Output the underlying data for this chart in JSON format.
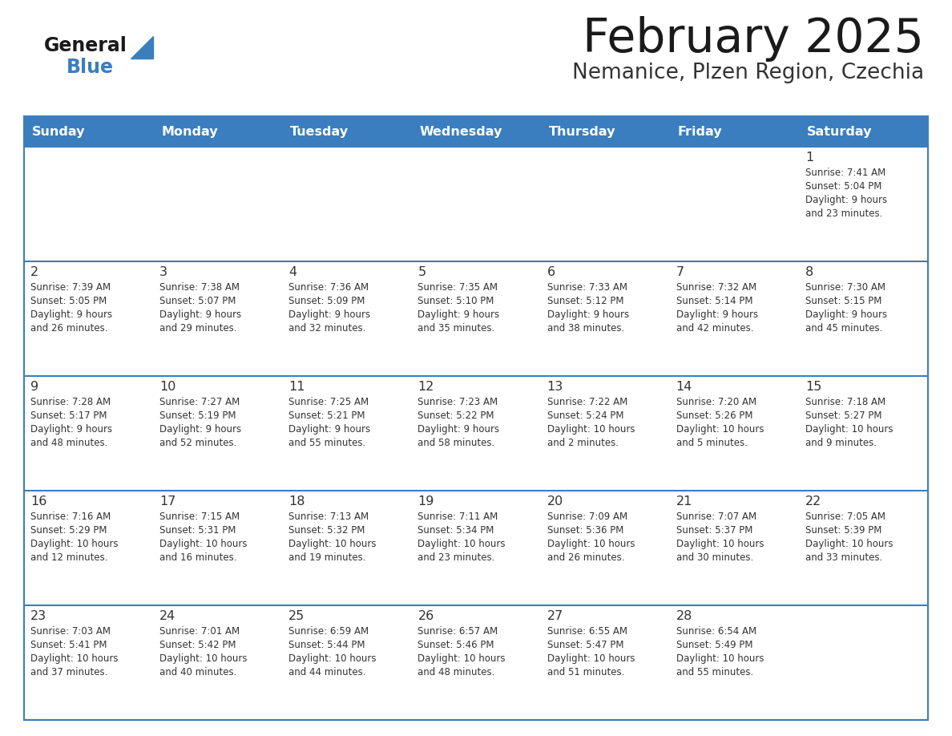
{
  "title": "February 2025",
  "subtitle": "Nemanice, Plzen Region, Czechia",
  "header_bg": "#3a7ebf",
  "header_text": "#ffffff",
  "cell_bg_white": "#ffffff",
  "cell_bg_gray": "#f0f4f8",
  "border_color": "#3a7ebf",
  "day_headers": [
    "Sunday",
    "Monday",
    "Tuesday",
    "Wednesday",
    "Thursday",
    "Friday",
    "Saturday"
  ],
  "title_color": "#1a1a1a",
  "subtitle_color": "#333333",
  "cell_text_color": "#333333",
  "logo_general_color": "#1a1a1a",
  "logo_blue_color": "#3a7ebf",
  "logo_triangle_color": "#3a7ebf",
  "days": [
    {
      "day": 1,
      "col": 6,
      "row": 0,
      "sunrise": "7:41 AM",
      "sunset": "5:04 PM",
      "daylight": "9 hours and 23 minutes"
    },
    {
      "day": 2,
      "col": 0,
      "row": 1,
      "sunrise": "7:39 AM",
      "sunset": "5:05 PM",
      "daylight": "9 hours and 26 minutes"
    },
    {
      "day": 3,
      "col": 1,
      "row": 1,
      "sunrise": "7:38 AM",
      "sunset": "5:07 PM",
      "daylight": "9 hours and 29 minutes"
    },
    {
      "day": 4,
      "col": 2,
      "row": 1,
      "sunrise": "7:36 AM",
      "sunset": "5:09 PM",
      "daylight": "9 hours and 32 minutes"
    },
    {
      "day": 5,
      "col": 3,
      "row": 1,
      "sunrise": "7:35 AM",
      "sunset": "5:10 PM",
      "daylight": "9 hours and 35 minutes"
    },
    {
      "day": 6,
      "col": 4,
      "row": 1,
      "sunrise": "7:33 AM",
      "sunset": "5:12 PM",
      "daylight": "9 hours and 38 minutes"
    },
    {
      "day": 7,
      "col": 5,
      "row": 1,
      "sunrise": "7:32 AM",
      "sunset": "5:14 PM",
      "daylight": "9 hours and 42 minutes"
    },
    {
      "day": 8,
      "col": 6,
      "row": 1,
      "sunrise": "7:30 AM",
      "sunset": "5:15 PM",
      "daylight": "9 hours and 45 minutes"
    },
    {
      "day": 9,
      "col": 0,
      "row": 2,
      "sunrise": "7:28 AM",
      "sunset": "5:17 PM",
      "daylight": "9 hours and 48 minutes"
    },
    {
      "day": 10,
      "col": 1,
      "row": 2,
      "sunrise": "7:27 AM",
      "sunset": "5:19 PM",
      "daylight": "9 hours and 52 minutes"
    },
    {
      "day": 11,
      "col": 2,
      "row": 2,
      "sunrise": "7:25 AM",
      "sunset": "5:21 PM",
      "daylight": "9 hours and 55 minutes"
    },
    {
      "day": 12,
      "col": 3,
      "row": 2,
      "sunrise": "7:23 AM",
      "sunset": "5:22 PM",
      "daylight": "9 hours and 58 minutes"
    },
    {
      "day": 13,
      "col": 4,
      "row": 2,
      "sunrise": "7:22 AM",
      "sunset": "5:24 PM",
      "daylight": "10 hours and 2 minutes"
    },
    {
      "day": 14,
      "col": 5,
      "row": 2,
      "sunrise": "7:20 AM",
      "sunset": "5:26 PM",
      "daylight": "10 hours and 5 minutes"
    },
    {
      "day": 15,
      "col": 6,
      "row": 2,
      "sunrise": "7:18 AM",
      "sunset": "5:27 PM",
      "daylight": "10 hours and 9 minutes"
    },
    {
      "day": 16,
      "col": 0,
      "row": 3,
      "sunrise": "7:16 AM",
      "sunset": "5:29 PM",
      "daylight": "10 hours and 12 minutes"
    },
    {
      "day": 17,
      "col": 1,
      "row": 3,
      "sunrise": "7:15 AM",
      "sunset": "5:31 PM",
      "daylight": "10 hours and 16 minutes"
    },
    {
      "day": 18,
      "col": 2,
      "row": 3,
      "sunrise": "7:13 AM",
      "sunset": "5:32 PM",
      "daylight": "10 hours and 19 minutes"
    },
    {
      "day": 19,
      "col": 3,
      "row": 3,
      "sunrise": "7:11 AM",
      "sunset": "5:34 PM",
      "daylight": "10 hours and 23 minutes"
    },
    {
      "day": 20,
      "col": 4,
      "row": 3,
      "sunrise": "7:09 AM",
      "sunset": "5:36 PM",
      "daylight": "10 hours and 26 minutes"
    },
    {
      "day": 21,
      "col": 5,
      "row": 3,
      "sunrise": "7:07 AM",
      "sunset": "5:37 PM",
      "daylight": "10 hours and 30 minutes"
    },
    {
      "day": 22,
      "col": 6,
      "row": 3,
      "sunrise": "7:05 AM",
      "sunset": "5:39 PM",
      "daylight": "10 hours and 33 minutes"
    },
    {
      "day": 23,
      "col": 0,
      "row": 4,
      "sunrise": "7:03 AM",
      "sunset": "5:41 PM",
      "daylight": "10 hours and 37 minutes"
    },
    {
      "day": 24,
      "col": 1,
      "row": 4,
      "sunrise": "7:01 AM",
      "sunset": "5:42 PM",
      "daylight": "10 hours and 40 minutes"
    },
    {
      "day": 25,
      "col": 2,
      "row": 4,
      "sunrise": "6:59 AM",
      "sunset": "5:44 PM",
      "daylight": "10 hours and 44 minutes"
    },
    {
      "day": 26,
      "col": 3,
      "row": 4,
      "sunrise": "6:57 AM",
      "sunset": "5:46 PM",
      "daylight": "10 hours and 48 minutes"
    },
    {
      "day": 27,
      "col": 4,
      "row": 4,
      "sunrise": "6:55 AM",
      "sunset": "5:47 PM",
      "daylight": "10 hours and 51 minutes"
    },
    {
      "day": 28,
      "col": 5,
      "row": 4,
      "sunrise": "6:54 AM",
      "sunset": "5:49 PM",
      "daylight": "10 hours and 55 minutes"
    }
  ]
}
